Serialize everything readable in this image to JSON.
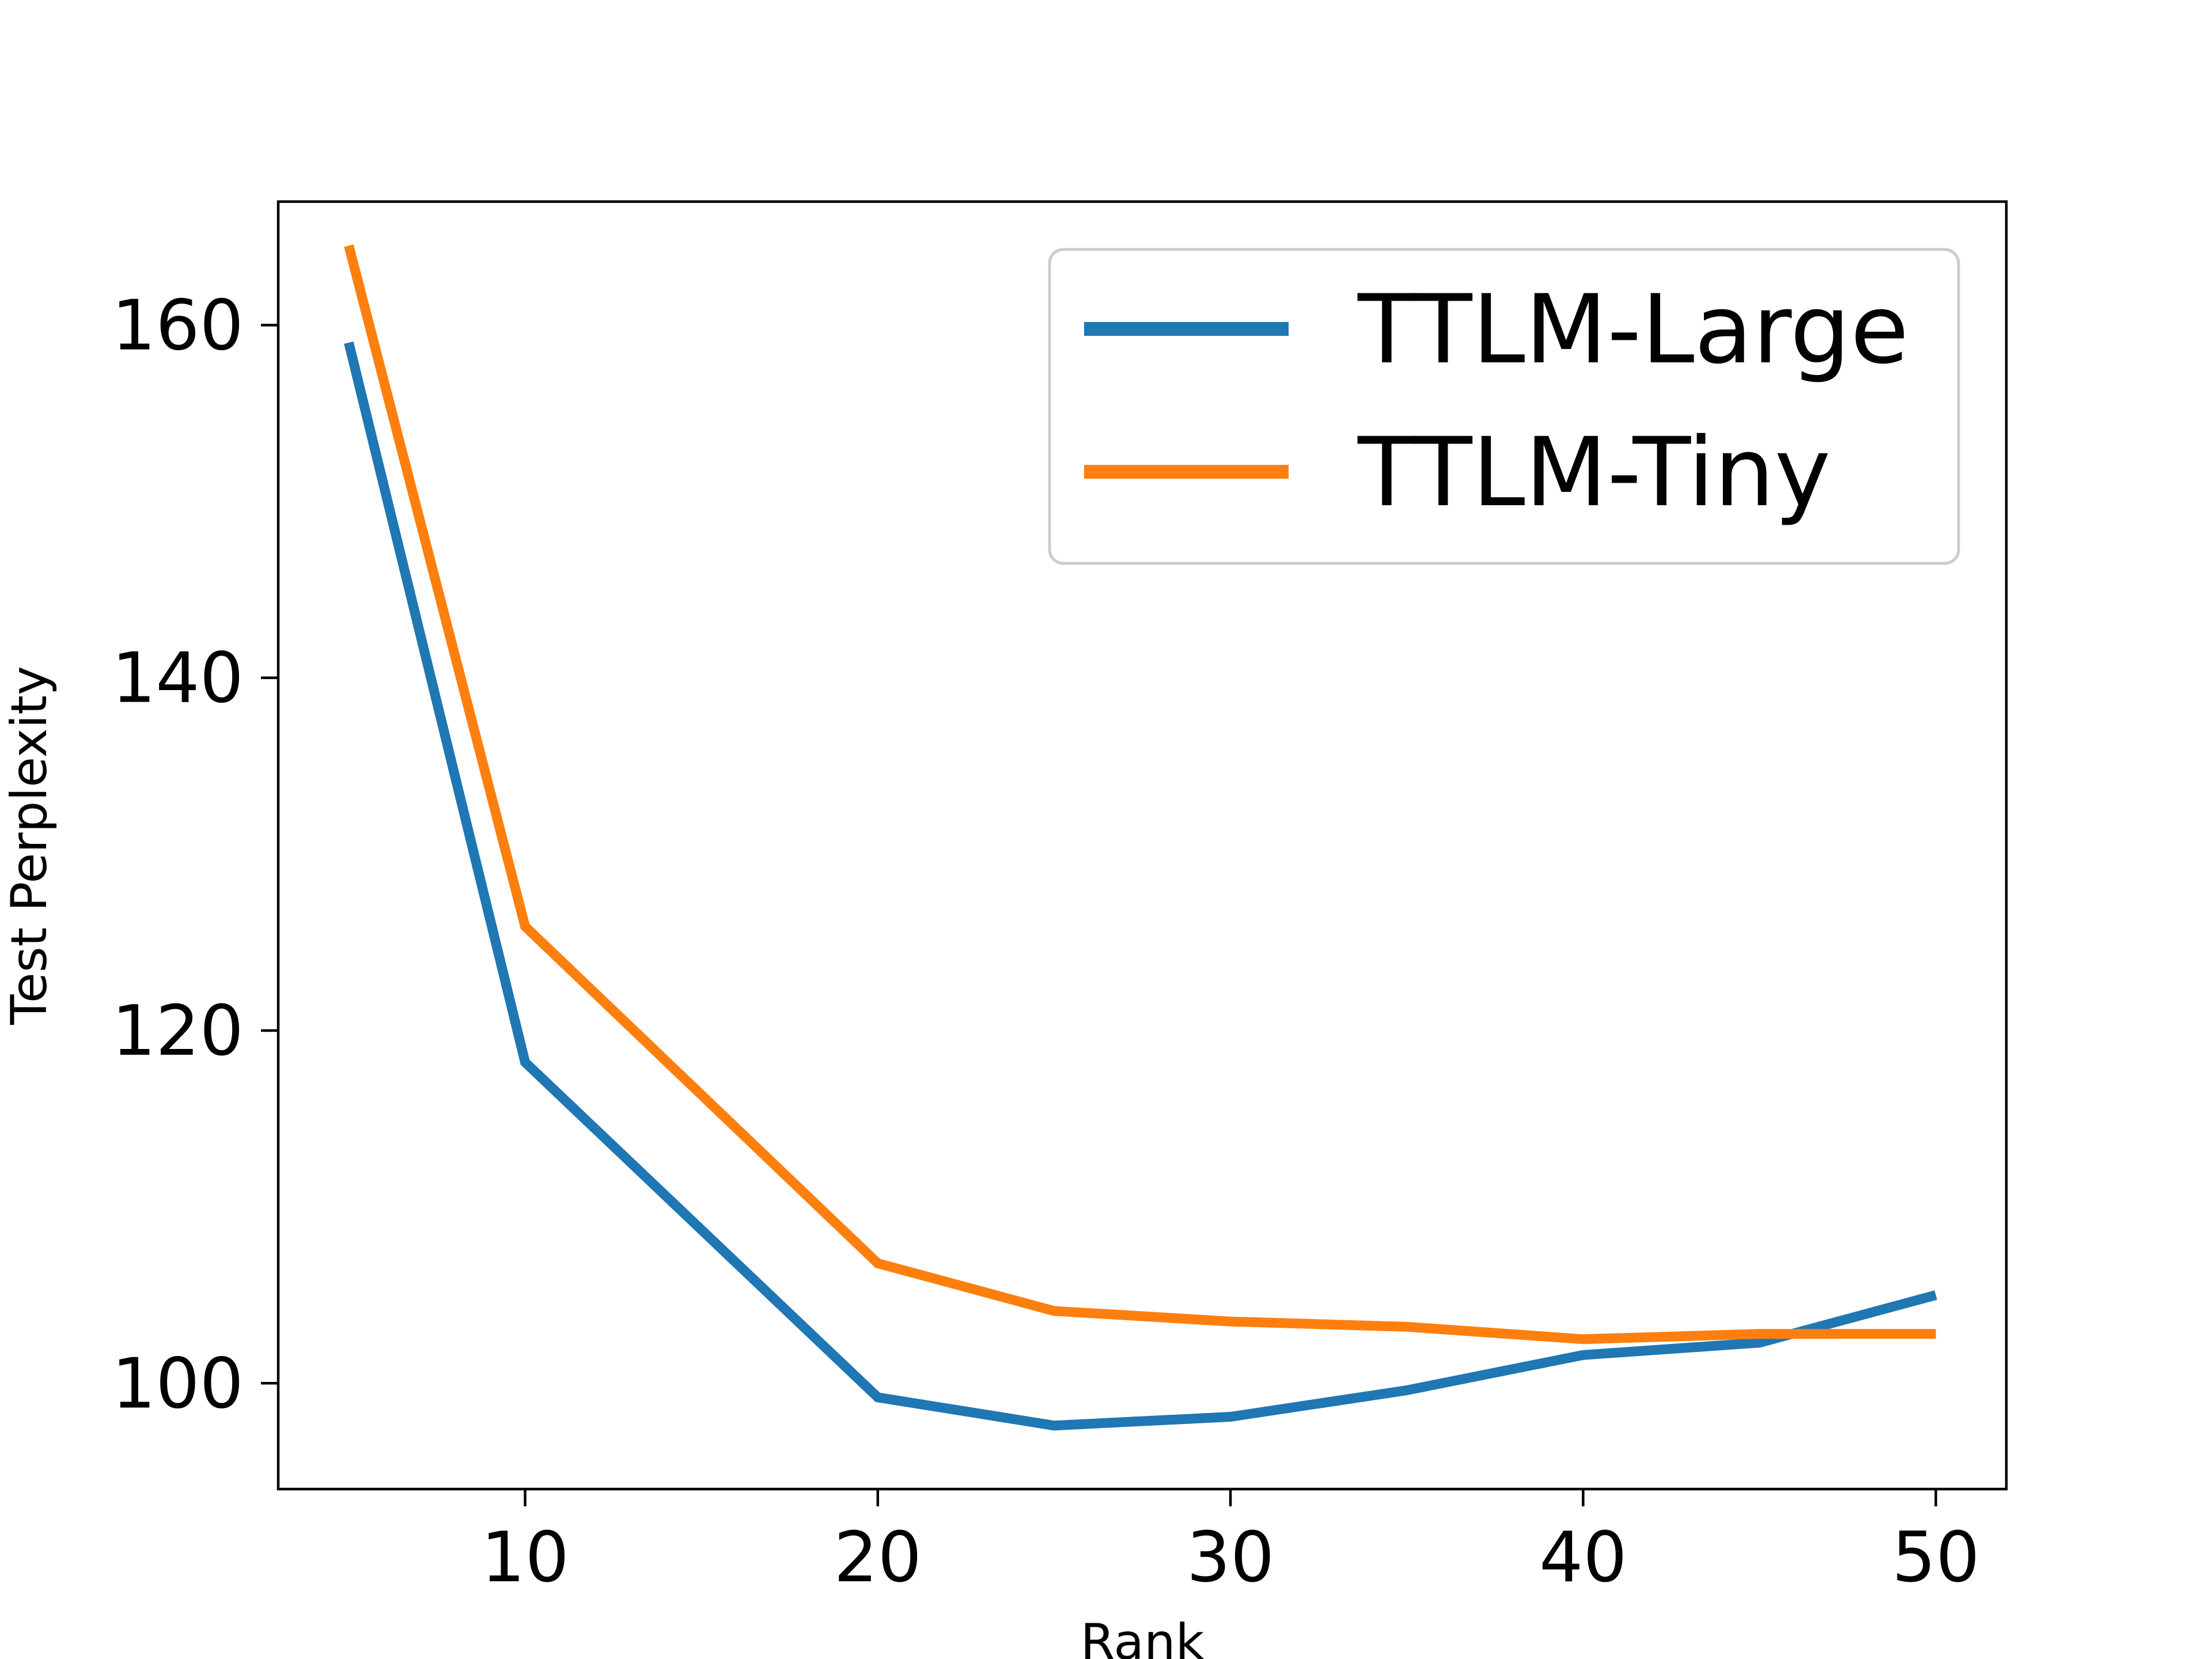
{
  "chart_data": {
    "type": "line",
    "title": "",
    "xlabel": "Rank",
    "ylabel": "Test Perplexity",
    "xlim": [
      3,
      52
    ],
    "ylim": [
      94,
      167
    ],
    "xticks": [
      10,
      20,
      30,
      40,
      50
    ],
    "yticks": [
      100,
      120,
      140,
      160
    ],
    "grid": false,
    "legend_position": "top-right",
    "series": [
      {
        "name": "TTLM-Large",
        "color": "#1f77b4",
        "x": [
          5,
          10,
          20,
          25,
          30,
          35,
          40,
          45,
          50
        ],
        "y": [
          159,
          118.2,
          99.2,
          97.6,
          98.1,
          99.6,
          101.6,
          102.3,
          105
        ]
      },
      {
        "name": "TTLM-Tiny",
        "color": "#ff7f0e",
        "x": [
          5,
          10,
          20,
          25,
          30,
          35,
          40,
          45,
          50
        ],
        "y": [
          164.5,
          125.9,
          106.8,
          104.1,
          103.5,
          103.2,
          102.5,
          102.8,
          102.8
        ]
      }
    ]
  }
}
